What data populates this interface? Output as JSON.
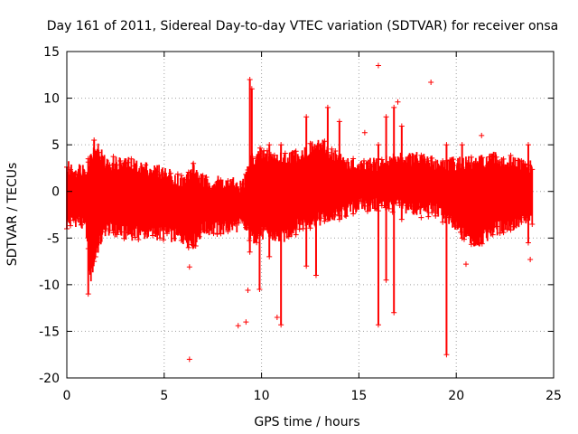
{
  "chart_data": {
    "type": "scatter",
    "title": "Day 161 of 2011, Sidereal Day-to-day VTEC variation (SDTVAR) for receiver onsa",
    "xlabel": "GPS time / hours",
    "ylabel": "SDTVAR / TECUs",
    "xlim": [
      0,
      25
    ],
    "ylim": [
      -20,
      15
    ],
    "xticks": [
      0,
      5,
      10,
      15,
      20,
      25
    ],
    "yticks": [
      -20,
      -15,
      -10,
      -5,
      0,
      5,
      10,
      15
    ],
    "grid": true,
    "marker": "+",
    "color": "#ff0000",
    "series": [
      {
        "name": "SDTVAR",
        "band_profile": [
          {
            "x": 0.0,
            "lo": -3.5,
            "hi": 2.5
          },
          {
            "x": 0.5,
            "lo": -3.0,
            "hi": 2.3
          },
          {
            "x": 1.0,
            "lo": -4.0,
            "hi": 2.5
          },
          {
            "x": 1.2,
            "lo": -9.5,
            "hi": 3.5
          },
          {
            "x": 1.5,
            "lo": -6.5,
            "hi": 5.0
          },
          {
            "x": 2.0,
            "lo": -4.0,
            "hi": 3.0
          },
          {
            "x": 3.0,
            "lo": -4.5,
            "hi": 3.0
          },
          {
            "x": 4.0,
            "lo": -4.5,
            "hi": 2.5
          },
          {
            "x": 5.0,
            "lo": -4.5,
            "hi": 2.0
          },
          {
            "x": 6.0,
            "lo": -5.0,
            "hi": 1.0
          },
          {
            "x": 6.5,
            "lo": -5.5,
            "hi": 2.5
          },
          {
            "x": 7.0,
            "lo": -4.0,
            "hi": 1.0
          },
          {
            "x": 8.0,
            "lo": -4.0,
            "hi": 1.0
          },
          {
            "x": 9.0,
            "lo": -3.5,
            "hi": 0.5
          },
          {
            "x": 9.5,
            "lo": -5.0,
            "hi": 3.5
          },
          {
            "x": 10.0,
            "lo": -4.5,
            "hi": 4.0
          },
          {
            "x": 11.0,
            "lo": -5.0,
            "hi": 3.5
          },
          {
            "x": 12.0,
            "lo": -3.5,
            "hi": 4.0
          },
          {
            "x": 13.0,
            "lo": -3.0,
            "hi": 5.0
          },
          {
            "x": 14.0,
            "lo": -2.5,
            "hi": 3.5
          },
          {
            "x": 15.0,
            "lo": -1.5,
            "hi": 2.5
          },
          {
            "x": 16.0,
            "lo": -1.5,
            "hi": 3.0
          },
          {
            "x": 17.0,
            "lo": -1.5,
            "hi": 3.5
          },
          {
            "x": 18.0,
            "lo": -2.0,
            "hi": 3.5
          },
          {
            "x": 19.0,
            "lo": -2.0,
            "hi": 3.0
          },
          {
            "x": 20.0,
            "lo": -4.0,
            "hi": 3.0
          },
          {
            "x": 21.0,
            "lo": -5.5,
            "hi": 3.0
          },
          {
            "x": 22.0,
            "lo": -4.0,
            "hi": 3.5
          },
          {
            "x": 23.0,
            "lo": -3.5,
            "hi": 3.0
          },
          {
            "x": 23.9,
            "lo": -3.0,
            "hi": 2.5
          }
        ],
        "spikes": [
          {
            "x": 1.1,
            "lo": -11.0,
            "hi": 3.5
          },
          {
            "x": 1.4,
            "lo": -7.5,
            "hi": 5.5
          },
          {
            "x": 6.5,
            "lo": -5.8,
            "hi": 3.0
          },
          {
            "x": 9.4,
            "lo": -6.5,
            "hi": 12.0
          },
          {
            "x": 9.5,
            "lo": -3.0,
            "hi": 11.0
          },
          {
            "x": 9.9,
            "lo": -10.5,
            "hi": 3.0
          },
          {
            "x": 10.4,
            "lo": -7.0,
            "hi": 5.0
          },
          {
            "x": 11.0,
            "lo": -14.3,
            "hi": 5.0
          },
          {
            "x": 12.3,
            "lo": -8.0,
            "hi": 8.0
          },
          {
            "x": 12.8,
            "lo": -9.0,
            "hi": 4.0
          },
          {
            "x": 13.4,
            "lo": -3.0,
            "hi": 9.0
          },
          {
            "x": 14.0,
            "lo": -3.0,
            "hi": 7.5
          },
          {
            "x": 16.0,
            "lo": -14.3,
            "hi": 5.0
          },
          {
            "x": 16.4,
            "lo": -9.5,
            "hi": 8.0
          },
          {
            "x": 16.8,
            "lo": -13.0,
            "hi": 9.0
          },
          {
            "x": 17.2,
            "lo": -3.0,
            "hi": 7.0
          },
          {
            "x": 19.5,
            "lo": -17.5,
            "hi": 5.0
          },
          {
            "x": 20.3,
            "lo": -5.0,
            "hi": 5.0
          },
          {
            "x": 23.7,
            "lo": -5.5,
            "hi": 5.0
          }
        ],
        "outliers": [
          {
            "x": 6.3,
            "y": -8.1
          },
          {
            "x": 6.3,
            "y": -18.0
          },
          {
            "x": 8.8,
            "y": -14.4
          },
          {
            "x": 9.2,
            "y": -14.0
          },
          {
            "x": 9.3,
            "y": -10.6
          },
          {
            "x": 9.3,
            "y": 2.3
          },
          {
            "x": 10.8,
            "y": -13.5
          },
          {
            "x": 15.3,
            "y": 6.3
          },
          {
            "x": 16.0,
            "y": 13.5
          },
          {
            "x": 17.0,
            "y": 9.6
          },
          {
            "x": 18.7,
            "y": 11.7
          },
          {
            "x": 18.2,
            "y": -2.8
          },
          {
            "x": 20.5,
            "y": -7.8
          },
          {
            "x": 21.3,
            "y": 6.0
          },
          {
            "x": 23.8,
            "y": -7.3
          }
        ]
      }
    ]
  }
}
